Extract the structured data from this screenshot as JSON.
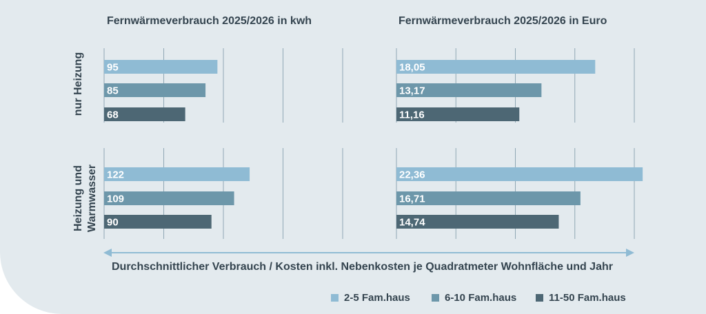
{
  "titles": {
    "left": "Fernwärmeverbrauch 2025/2026 in kwh",
    "right": "Fernwärmeverbrauch 2025/2026 in Euro"
  },
  "row_labels": {
    "top": "nur Heizung",
    "bottom_line1": "Heizung und",
    "bottom_line2": "Warmwasser"
  },
  "axis_caption": "Durchschnittlicher Verbrauch / Kosten inkl. Nebenkosten je Quadratmeter Wohnfläche und Jahr",
  "legend": [
    {
      "label": "2-5 Fam.haus",
      "color": "#8fbbd4"
    },
    {
      "label": "6-10 Fam.haus",
      "color": "#6d97aa"
    },
    {
      "label": "11-50 Fam.haus",
      "color": "#4d6774"
    }
  ],
  "colors": {
    "background": "#e3eaee",
    "grid": "#8fa7b4",
    "arrow": "#8fbbd4",
    "text": "#34444f"
  },
  "chart_data": [
    {
      "type": "bar",
      "title": "Fernwärmeverbrauch 2025/2026 in kwh",
      "row": "nur Heizung",
      "orientation": "horizontal",
      "categories": [
        "2-5 Fam.haus",
        "6-10 Fam.haus",
        "11-50 Fam.haus"
      ],
      "values": [
        95,
        85,
        68
      ],
      "labels": [
        "95",
        "85",
        "68"
      ],
      "xlim": [
        0,
        200
      ],
      "grid": true
    },
    {
      "type": "bar",
      "title": "Fernwärmeverbrauch 2025/2026 in Euro",
      "row": "nur Heizung",
      "orientation": "horizontal",
      "categories": [
        "2-5 Fam.haus",
        "6-10 Fam.haus",
        "11-50 Fam.haus"
      ],
      "values": [
        18.05,
        13.17,
        11.16
      ],
      "labels": [
        "18,05",
        "13,17",
        "11,16"
      ],
      "xlim": [
        0,
        21.6
      ],
      "grid": true
    },
    {
      "type": "bar",
      "title": "Fernwärmeverbrauch 2025/2026 in kwh",
      "row": "Heizung und Warmwasser",
      "orientation": "horizontal",
      "categories": [
        "2-5 Fam.haus",
        "6-10 Fam.haus",
        "11-50 Fam.haus"
      ],
      "values": [
        122,
        109,
        90
      ],
      "labels": [
        "122",
        "109",
        "90"
      ],
      "xlim": [
        0,
        200
      ],
      "grid": true
    },
    {
      "type": "bar",
      "title": "Fernwärmeverbrauch 2025/2026 in Euro",
      "row": "Heizung und Warmwasser",
      "orientation": "horizontal",
      "categories": [
        "2-5 Fam.haus",
        "6-10 Fam.haus",
        "11-50 Fam.haus"
      ],
      "values": [
        22.36,
        16.71,
        14.74
      ],
      "labels": [
        "22,36",
        "16,71",
        "14,74"
      ],
      "xlim": [
        0,
        21.6
      ],
      "grid": true
    }
  ]
}
